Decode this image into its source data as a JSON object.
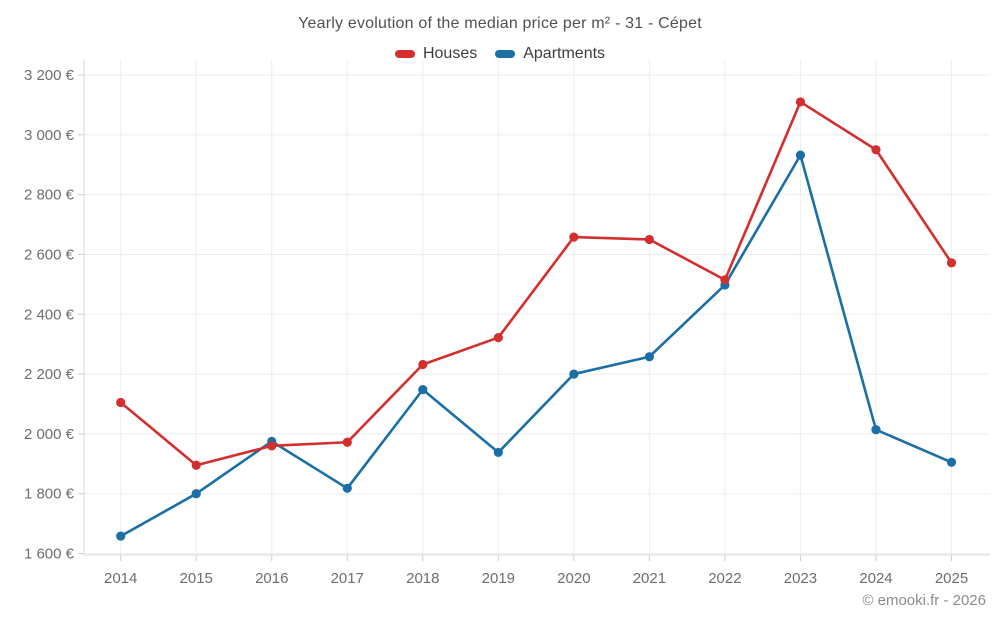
{
  "title": "Yearly evolution of the median price per m² - 31 - Cépet",
  "legend": {
    "items": [
      {
        "label": "Houses",
        "color": "#d32f2f"
      },
      {
        "label": "Apartments",
        "color": "#1a6fa5"
      }
    ]
  },
  "footer": {
    "text": "© emooki.fr - 2026"
  },
  "chart_data": {
    "type": "line",
    "title": "Yearly evolution of the median price per m² - 31 - Cépet",
    "x": [
      2014,
      2015,
      2016,
      2017,
      2018,
      2019,
      2020,
      2021,
      2022,
      2023,
      2024,
      2025
    ],
    "x_tick_labels": [
      "2014",
      "2015",
      "2016",
      "2017",
      "2018",
      "2019",
      "2020",
      "2021",
      "2022",
      "2023",
      "2024",
      "2025"
    ],
    "series": [
      {
        "name": "Houses",
        "color": "#d32f2f",
        "values": [
          2105,
          1895,
          1960,
          1972,
          2232,
          2322,
          2658,
          2650,
          2515,
          3110,
          2950,
          2572
        ]
      },
      {
        "name": "Apartments",
        "color": "#1a6fa5",
        "values": [
          1658,
          1800,
          1975,
          1818,
          2148,
          1938,
          2200,
          2258,
          2498,
          2932,
          2014,
          1905
        ]
      }
    ],
    "ylim": [
      1600,
      3200
    ],
    "y_tick_step": 200,
    "y_tick_labels": [
      "1 600 €",
      "1 800 €",
      "2 000 €",
      "2 200 €",
      "2 400 €",
      "2 600 €",
      "2 800 €",
      "3 000 €",
      "3 200 €"
    ],
    "currency": "€",
    "grid": true,
    "legend_position": "top-center"
  }
}
